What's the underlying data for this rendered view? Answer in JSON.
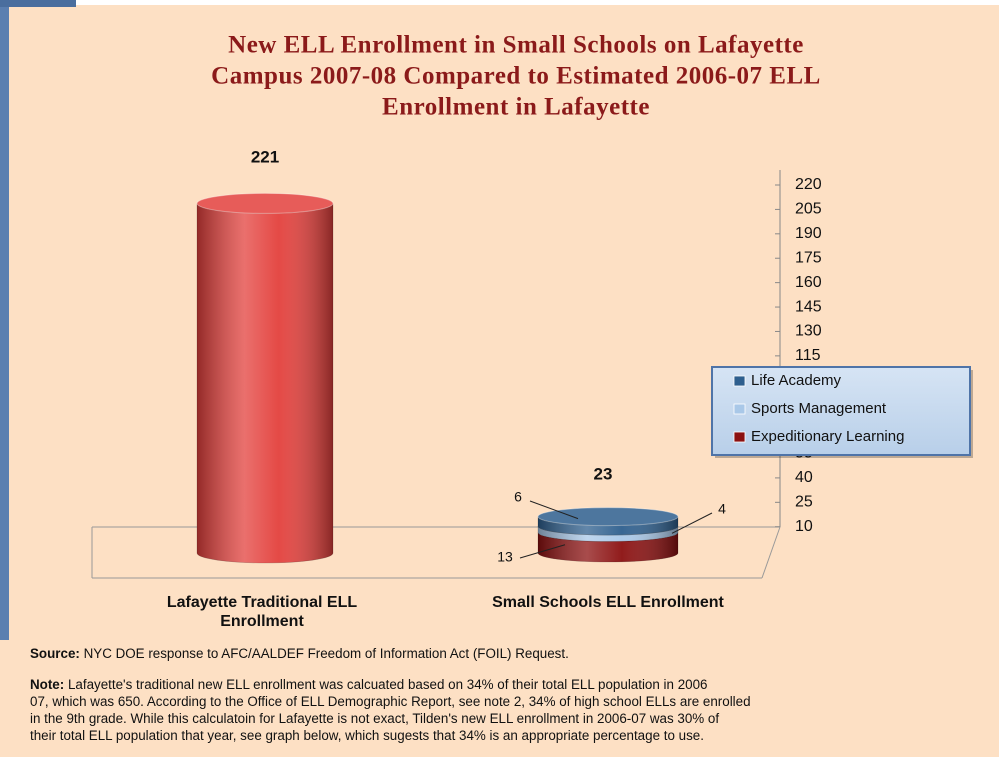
{
  "chart_data": {
    "type": "cylinder",
    "title_lines": [
      "New ELL Enrollment in Small Schools on Lafayette",
      "Campus 2007-08 Compared to Estimated 2006-07 ELL",
      "Enrollment in Lafayette"
    ],
    "categories": [
      "Lafayette Traditional ELL Enrollment",
      "Small Schools ELL Enrollment"
    ],
    "traditional": {
      "value": 221,
      "color": "#e3403c"
    },
    "series": [
      {
        "name": "Expeditionary Learning",
        "color": "#8b1010",
        "values": [
          null,
          13
        ]
      },
      {
        "name": "Sports Management",
        "color": "#a9c8e8",
        "values": [
          null,
          4
        ]
      },
      {
        "name": "Life Academy",
        "color": "#2e5f8e",
        "values": [
          null,
          6
        ]
      }
    ],
    "total_label": 23,
    "ylim": [
      0,
      220
    ],
    "yticks": [
      10,
      25,
      40,
      55,
      70,
      85,
      100,
      115,
      130,
      145,
      160,
      175,
      190,
      205,
      220
    ],
    "legend": "right",
    "source_label": "Source:",
    "source": "NYC DOE response to AFC/AALDEF Freedom of Information Act (FOIL) Request.",
    "note_label": "Note:",
    "note_lines": [
      "Lafayette's traditional new ELL enrollment was calcuated based on 34% of their total ELL population in 2006",
      "07, which was 650.  According to the Office of ELL Demographic Report, see note 2, 34% of high school ELLs are enrolled",
      "in the 9th grade.  While this calculatoin for Lafayette is not exact, Tilden's new ELL enrollment in 2006-07 was 30% of",
      "their total ELL population that year, see graph below, which sugests that 34% is an appropriate percentage to use."
    ]
  }
}
